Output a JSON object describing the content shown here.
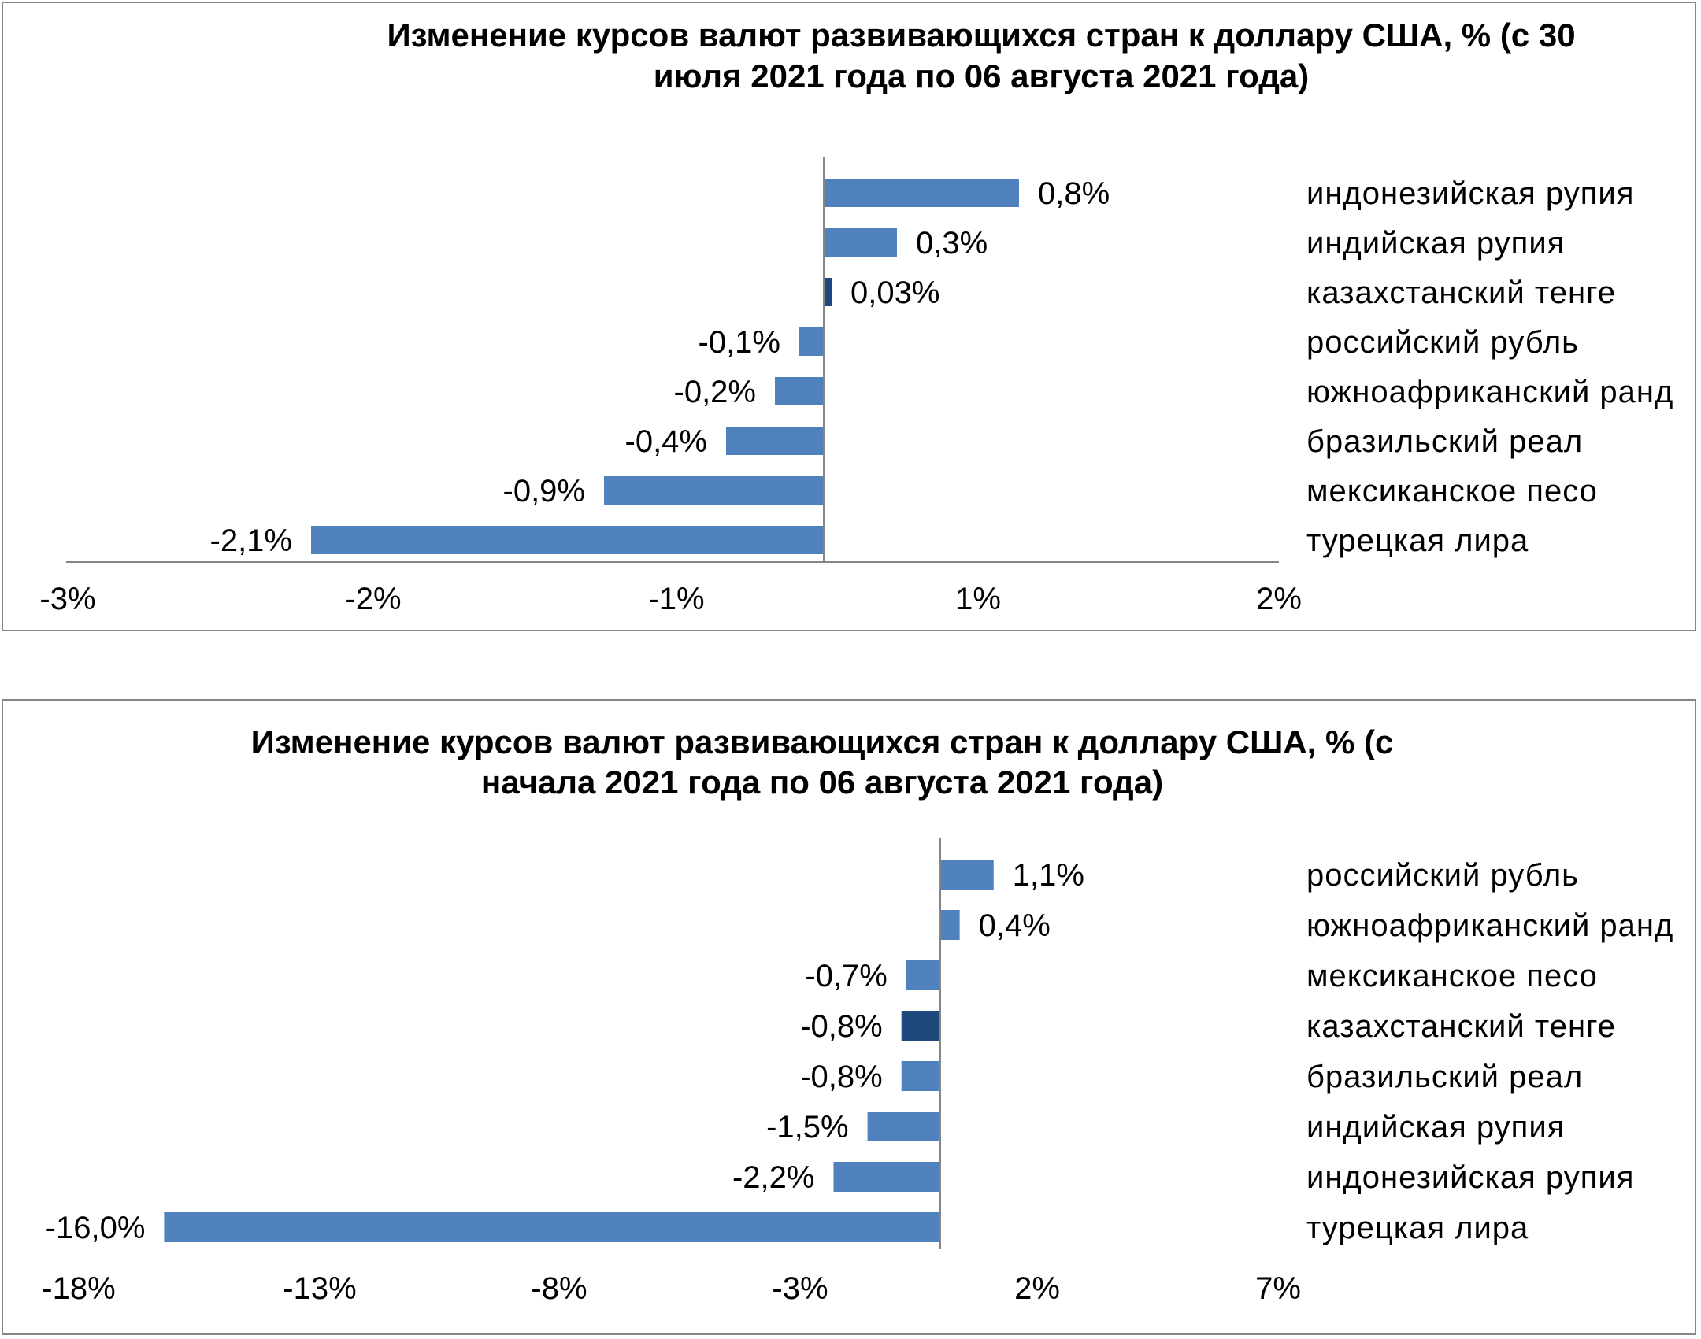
{
  "colors": {
    "bar": "#4f81bd",
    "highlight": "#1f497d",
    "axis": "#858585"
  },
  "chart_data": [
    {
      "type": "bar",
      "orientation": "horizontal",
      "title_lines": [
        "Изменение курсов валют развивающихся стран  к доллару США,  % (с 30",
        "июля 2021 года по 06 августа  2021 года)"
      ],
      "xlim": [
        -3,
        2
      ],
      "tick_labels": [
        "-3%",
        "-2%",
        "-1%",
        "1%",
        "2%"
      ],
      "categories": [
        "индонезийская  рупия",
        "индийская  рупия",
        "казахстанский  тенге",
        "российский  рубль",
        "южноафриканский   ранд",
        "бразильский  реал",
        "мексиканское песо",
        "турецкая  лира"
      ],
      "values": [
        0.8,
        0.3,
        0.03,
        -0.1,
        -0.2,
        -0.4,
        -0.9,
        -2.1
      ],
      "value_labels": [
        "0,8%",
        "0,3%",
        "0,03%",
        "-0,1%",
        "-0,2%",
        "-0,4%",
        "-0,9%",
        "-2,1%"
      ],
      "highlight": "казахстанский  тенге",
      "grid": false
    },
    {
      "type": "bar",
      "orientation": "horizontal",
      "title_lines": [
        "Изменение курсов валют развивающихся стран  к доллару США,  % (с",
        "начала 2021  года по 06 августа  2021 года)"
      ],
      "xlim": [
        -18,
        7
      ],
      "tick_labels": [
        "-18%",
        "-13%",
        "-8%",
        "-3%",
        "2%",
        "7%"
      ],
      "categories": [
        "российский  рубль",
        "южноафриканский   ранд",
        "мексиканское песо",
        "казахстанский  тенге",
        "бразильский  реал",
        "индийская  рупия",
        "индонезийская  рупия",
        "турецкая  лира"
      ],
      "values": [
        1.1,
        0.4,
        -0.7,
        -0.8,
        -0.8,
        -1.5,
        -2.2,
        -16.0
      ],
      "value_labels": [
        "1,1%",
        "0,4%",
        "-0,7%",
        "-0,8%",
        "-0,8%",
        "-1,5%",
        "-2,2%",
        "-16,0%"
      ],
      "highlight": "казахстанский  тенге",
      "grid": false
    }
  ]
}
